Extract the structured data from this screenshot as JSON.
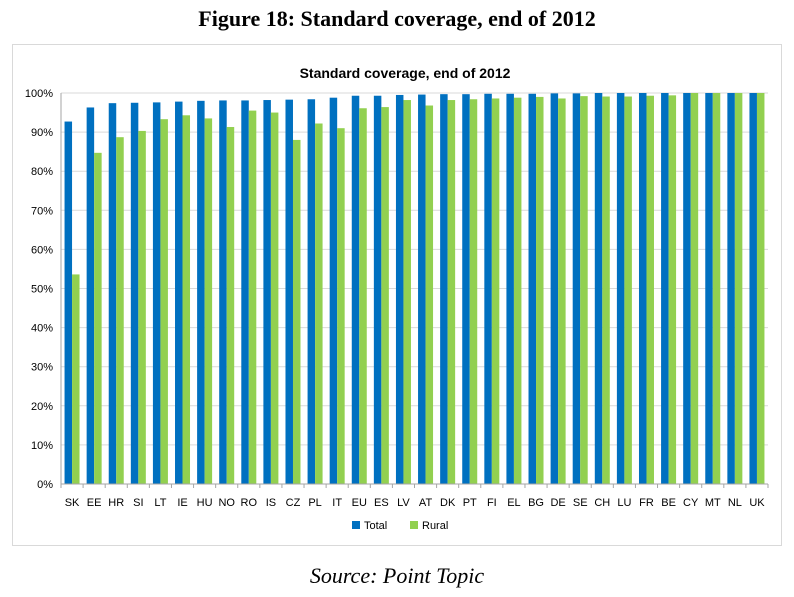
{
  "figure_title": "Figure 18: Standard coverage, end of 2012",
  "source": "Source: Point Topic",
  "colors": {
    "total": "#0070C0",
    "rural": "#92D050",
    "grid": "#d9d9d9",
    "axis": "#a6a6a6"
  },
  "chart_data": {
    "type": "bar",
    "title": "Standard coverage, end of 2012",
    "xlabel": "",
    "ylabel": "",
    "ylim": [
      0,
      100
    ],
    "yticks": [
      "0%",
      "10%",
      "20%",
      "30%",
      "40%",
      "50%",
      "60%",
      "70%",
      "80%",
      "90%",
      "100%"
    ],
    "legend_position": "bottom",
    "categories": [
      "SK",
      "EE",
      "HR",
      "SI",
      "LT",
      "IE",
      "HU",
      "NO",
      "RO",
      "IS",
      "CZ",
      "PL",
      "IT",
      "EU",
      "ES",
      "LV",
      "AT",
      "DK",
      "PT",
      "FI",
      "EL",
      "BG",
      "DE",
      "SE",
      "CH",
      "LU",
      "FR",
      "BE",
      "CY",
      "MT",
      "NL",
      "UK"
    ],
    "series": [
      {
        "name": "Total",
        "values": [
          92.7,
          96.3,
          97.4,
          97.5,
          97.6,
          97.8,
          98.0,
          98.1,
          98.1,
          98.2,
          98.3,
          98.4,
          98.8,
          99.3,
          99.3,
          99.5,
          99.6,
          99.7,
          99.7,
          99.8,
          99.8,
          99.8,
          99.9,
          99.9,
          100,
          100,
          100,
          100,
          100,
          100,
          100,
          100
        ]
      },
      {
        "name": "Rural",
        "values": [
          53.6,
          84.7,
          88.7,
          90.3,
          93.3,
          94.3,
          93.5,
          91.3,
          95.5,
          95.0,
          88.0,
          92.2,
          91.0,
          96.1,
          96.4,
          98.2,
          96.8,
          98.2,
          98.4,
          98.6,
          98.8,
          99.0,
          98.6,
          99.2,
          99.1,
          99.1,
          99.3,
          99.4,
          100,
          100,
          100,
          100
        ]
      }
    ]
  }
}
